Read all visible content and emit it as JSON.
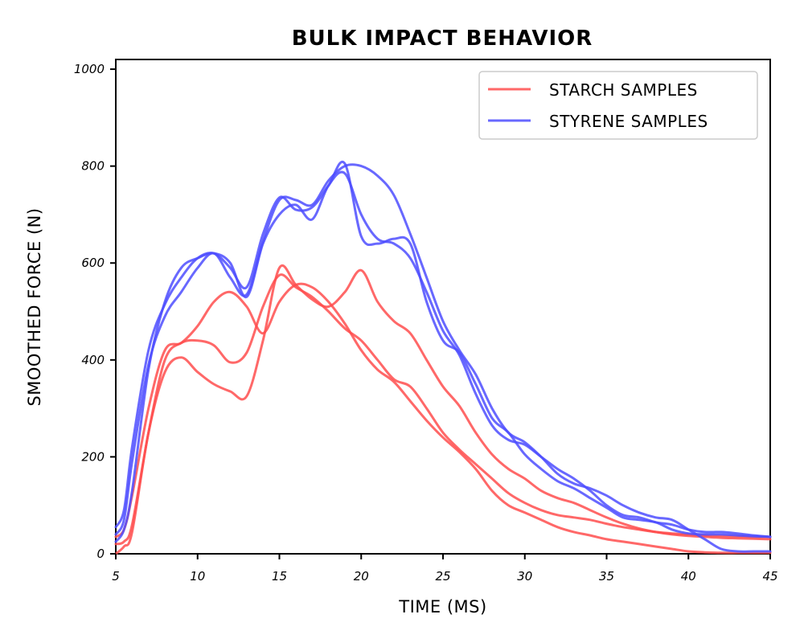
{
  "chart_data": {
    "type": "line",
    "title": "BULK IMPACT BEHAVIOR",
    "xlabel": "TIME (MS)",
    "ylabel": "SMOOTHED FORCE (N)",
    "xlim": [
      5,
      45
    ],
    "ylim": [
      0,
      1020
    ],
    "xticks": [
      5,
      10,
      15,
      20,
      25,
      30,
      35,
      40,
      45
    ],
    "yticks": [
      0,
      200,
      400,
      600,
      800,
      1000
    ],
    "grid": false,
    "legend": {
      "position": "top-right",
      "entries": [
        {
          "label": "STARCH SAMPLES",
          "color": "#ff4d4d"
        },
        {
          "label": "STYRENE SAMPLES",
          "color": "#4d4dff"
        }
      ]
    },
    "series": [
      {
        "group": "STARCH SAMPLES",
        "color": "#ff4d4d",
        "x": [
          5,
          5.5,
          6,
          7,
          8,
          9,
          10,
          11,
          12,
          13,
          14,
          15,
          16,
          17,
          18,
          19,
          20,
          21,
          22,
          23,
          24,
          25,
          26,
          27,
          28,
          29,
          30,
          31,
          32,
          33,
          34,
          35,
          36,
          37,
          38,
          39,
          40,
          41,
          42,
          43,
          44,
          45
        ],
        "y": [
          20,
          25,
          60,
          250,
          400,
          435,
          440,
          430,
          395,
          415,
          510,
          575,
          550,
          530,
          500,
          465,
          440,
          400,
          360,
          345,
          300,
          250,
          215,
          185,
          155,
          125,
          105,
          90,
          80,
          75,
          70,
          62,
          55,
          50,
          45,
          42,
          40,
          38,
          37,
          36,
          35,
          35
        ]
      },
      {
        "group": "STARCH SAMPLES",
        "color": "#ff4d4d",
        "x": [
          5,
          5.5,
          6,
          7,
          8,
          9,
          10,
          11,
          12,
          13,
          14,
          15,
          16,
          17,
          18,
          19,
          20,
          21,
          22,
          23,
          24,
          25,
          26,
          27,
          28,
          29,
          30,
          31,
          32,
          33,
          34,
          35,
          36,
          37,
          38,
          39,
          40,
          41,
          42,
          43,
          44,
          45
        ],
        "y": [
          35,
          50,
          120,
          300,
          420,
          435,
          470,
          520,
          540,
          510,
          455,
          520,
          555,
          550,
          520,
          475,
          420,
          380,
          355,
          315,
          275,
          240,
          210,
          175,
          130,
          100,
          85,
          70,
          55,
          45,
          38,
          30,
          25,
          20,
          15,
          10,
          5,
          3,
          2,
          2,
          2,
          2
        ]
      },
      {
        "group": "STARCH SAMPLES",
        "color": "#ff4d4d",
        "x": [
          5,
          5.5,
          6,
          7,
          8,
          9,
          10,
          11,
          12,
          13,
          14,
          15,
          16,
          17,
          18,
          19,
          20,
          21,
          22,
          23,
          24,
          25,
          26,
          27,
          28,
          29,
          30,
          31,
          32,
          33,
          34,
          35,
          36,
          37,
          38,
          39,
          40,
          41,
          42,
          43,
          44,
          45
        ],
        "y": [
          0,
          15,
          45,
          250,
          375,
          405,
          375,
          350,
          335,
          325,
          440,
          590,
          555,
          525,
          510,
          540,
          585,
          520,
          480,
          455,
          400,
          345,
          305,
          250,
          205,
          175,
          155,
          130,
          115,
          105,
          90,
          75,
          62,
          52,
          45,
          40,
          37,
          35,
          33,
          32,
          31,
          30
        ]
      },
      {
        "group": "STYRENE SAMPLES",
        "color": "#4d4dff",
        "x": [
          5,
          5.5,
          6,
          7,
          8,
          9,
          10,
          11,
          12,
          13,
          14,
          15,
          16,
          17,
          18,
          19,
          20,
          21,
          22,
          23,
          24,
          25,
          26,
          27,
          28,
          29,
          30,
          31,
          32,
          33,
          34,
          35,
          36,
          37,
          38,
          39,
          40,
          41,
          42,
          43,
          44,
          45
        ],
        "y": [
          25,
          50,
          130,
          380,
          520,
          590,
          610,
          620,
          600,
          530,
          640,
          700,
          720,
          690,
          760,
          785,
          700,
          650,
          640,
          610,
          540,
          460,
          410,
          330,
          265,
          235,
          225,
          200,
          175,
          155,
          130,
          100,
          80,
          75,
          65,
          60,
          50,
          45,
          45,
          42,
          38,
          35
        ]
      },
      {
        "group": "STYRENE SAMPLES",
        "color": "#4d4dff",
        "x": [
          5,
          5.5,
          6,
          7,
          8,
          9,
          10,
          11,
          12,
          13,
          14,
          15,
          16,
          17,
          18,
          19,
          20,
          21,
          22,
          23,
          24,
          25,
          26,
          27,
          28,
          29,
          30,
          31,
          32,
          33,
          34,
          35,
          36,
          37,
          38,
          39,
          40,
          41,
          42,
          43,
          44,
          45
        ],
        "y": [
          40,
          70,
          190,
          390,
          490,
          540,
          590,
          620,
          570,
          535,
          645,
          730,
          730,
          720,
          770,
          800,
          800,
          780,
          740,
          660,
          570,
          480,
          420,
          370,
          300,
          250,
          230,
          200,
          165,
          145,
          135,
          120,
          100,
          85,
          75,
          70,
          50,
          30,
          10,
          5,
          5,
          5
        ]
      },
      {
        "group": "STYRENE SAMPLES",
        "color": "#4d4dff",
        "x": [
          5,
          5.5,
          6,
          7,
          8,
          9,
          10,
          11,
          12,
          13,
          14,
          15,
          16,
          17,
          18,
          19,
          20,
          21,
          22,
          23,
          24,
          25,
          26,
          27,
          28,
          29,
          30,
          31,
          32,
          33,
          34,
          35,
          36,
          37,
          38,
          39,
          40,
          41,
          42,
          43,
          44,
          45
        ],
        "y": [
          55,
          90,
          220,
          420,
          515,
          570,
          610,
          620,
          590,
          550,
          660,
          735,
          710,
          715,
          760,
          805,
          655,
          640,
          650,
          640,
          520,
          440,
          415,
          350,
          280,
          250,
          205,
          175,
          150,
          135,
          115,
          95,
          75,
          70,
          65,
          50,
          42,
          40,
          40,
          38,
          36,
          35
        ]
      }
    ]
  }
}
